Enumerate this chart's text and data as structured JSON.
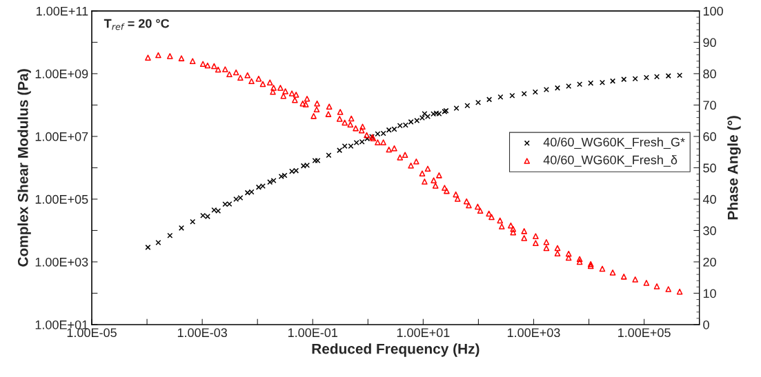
{
  "chart_data": {
    "type": "scatter",
    "xlabel": "Reduced Frequency (Hz)",
    "ylabel": "Complex Shear Modulus (Pa)",
    "y2label": "Phase Angle (°)",
    "annotations": [
      "T$_{ref}$ = 20 °C"
    ],
    "log": "xy",
    "grid": false,
    "legend": "right",
    "xlim": [
      1e-05,
      1000000.0
    ],
    "xticks": [
      {
        "value": 1e-05,
        "label": "1.00E-05"
      },
      {
        "value": 0.0001,
        "label": null
      },
      {
        "value": 0.001,
        "label": "1.00E-03"
      },
      {
        "value": 0.01,
        "label": null
      },
      {
        "value": 0.1,
        "label": "1.00E-01"
      },
      {
        "value": 1,
        "label": null
      },
      {
        "value": 10,
        "label": "1.00E+01"
      },
      {
        "value": 100,
        "label": null
      },
      {
        "value": 1000,
        "label": "1.00E+03"
      },
      {
        "value": 10000.0,
        "label": null
      },
      {
        "value": 100000.0,
        "label": "1.00E+05"
      },
      {
        "value": 1000000.0,
        "label": null
      }
    ],
    "ylim": [
      10,
      100000000000.0
    ],
    "yticks": [
      {
        "value": 10,
        "label": "1.00E+01"
      },
      {
        "value": 100,
        "label": null
      },
      {
        "value": 1000,
        "label": "1.00E+03"
      },
      {
        "value": 10000.0,
        "label": null
      },
      {
        "value": 100000.0,
        "label": "1.00E+05"
      },
      {
        "value": 1000000.0,
        "label": null
      },
      {
        "value": 10000000.0,
        "label": "1.00E+07"
      },
      {
        "value": 100000000.0,
        "label": null
      },
      {
        "value": 1000000000.0,
        "label": "1.00E+09"
      },
      {
        "value": 10000000000.0,
        "label": null
      },
      {
        "value": 100000000000.0,
        "label": "1.00E+11"
      }
    ],
    "y2lim": [
      0,
      100
    ],
    "y2ticks": [
      0,
      10,
      20,
      30,
      40,
      50,
      60,
      70,
      80,
      90,
      100
    ],
    "series": [
      {
        "name": "40/60_WG60K_Fresh_G*",
        "color": "#000000",
        "marker": "cross",
        "x": [
          0.000104,
          0.00016,
          0.00026,
          0.00042,
          0.00067,
          0.00103,
          0.00125,
          0.00164,
          0.00194,
          0.0026,
          0.0031,
          0.0041,
          0.0049,
          0.0066,
          0.0078,
          0.0105,
          0.0125,
          0.0168,
          0.0196,
          0.027,
          0.031,
          0.042,
          0.05,
          0.068,
          0.079,
          0.11,
          0.123,
          0.195,
          0.306,
          0.38,
          0.49,
          0.62,
          0.78,
          0.97,
          1.18,
          1.5,
          1.9,
          2.4,
          3.0,
          3.8,
          4.8,
          6.0,
          7.7,
          9.6,
          10.6,
          12.1,
          15.3,
          17.3,
          19.4,
          24.4,
          25.9,
          40,
          63,
          99,
          157,
          251,
          409,
          673,
          1070,
          1700,
          2700,
          4300,
          6800,
          10800,
          17500,
          27000,
          43000,
          69000,
          110000,
          170000,
          275000,
          440000
        ],
        "values": [
          2900.0,
          4100.0,
          6900.0,
          12000.0,
          19000.0,
          30000.0,
          28000.0,
          45000.0,
          42000.0,
          69000.0,
          70000.0,
          100000.0,
          110000.0,
          160000.0,
          170000.0,
          240000.0,
          260000.0,
          350000.0,
          390000.0,
          530000.0,
          570000.0,
          770000.0,
          810000.0,
          1150000.0,
          1200000.0,
          1700000.0,
          1700000.0,
          2500000.0,
          3600000.0,
          4900000.0,
          4900000.0,
          6300000.0,
          6700000.0,
          8500000.0,
          9800000.0,
          12000000.0,
          12500000.0,
          16000000.0,
          17000000.0,
          22000000.0,
          23000000.0,
          29000000.0,
          32000000.0,
          39000000.0,
          53000000.0,
          43000000.0,
          52000000.0,
          55000000.0,
          53000000.0,
          62000000.0,
          66000000.0,
          79000000.0,
          96000000.0,
          120000000.0,
          150000000.0,
          180000000.0,
          200000000.0,
          230000000.0,
          260000000.0,
          310000000.0,
          350000000.0,
          400000000.0,
          460000000.0,
          500000000.0,
          520000000.0,
          580000000.0,
          660000000.0,
          690000000.0,
          750000000.0,
          800000000.0,
          850000000.0,
          890000000.0
        ]
      },
      {
        "name": "40/60_WG60K_Fresh_δ",
        "color": "#ff0000",
        "marker": "triangle",
        "axis": "y2",
        "x": [
          0.000104,
          0.00016,
          0.00026,
          0.00042,
          0.00067,
          0.00103,
          0.00125,
          0.00164,
          0.00194,
          0.0026,
          0.0031,
          0.0041,
          0.0049,
          0.0066,
          0.0078,
          0.0105,
          0.0125,
          0.0168,
          0.0196,
          0.019,
          0.026,
          0.032,
          0.0295,
          0.042,
          0.05,
          0.0475,
          0.066,
          0.079,
          0.075,
          0.104,
          0.118,
          0.12,
          0.199,
          0.192,
          0.315,
          0.307,
          0.38,
          0.5,
          0.48,
          0.6,
          0.8,
          0.77,
          0.95,
          1.2,
          1.24,
          1.5,
          1.9,
          2.4,
          3.0,
          3.8,
          4.7,
          6.0,
          7.5,
          9.6,
          12.1,
          10.6,
          15.5,
          19.4,
          16.7,
          24.4,
          26.6,
          39,
          42,
          61,
          67,
          97,
          108,
          155,
          173,
          246,
          265,
          386,
          425,
          425,
          673,
          673,
          1087,
          1087,
          1700,
          1700,
          2700,
          2700,
          4300,
          4300,
          6800,
          6800,
          10800,
          10800,
          17500,
          27000,
          43000,
          69000,
          110000,
          170000,
          275000,
          440000
        ],
        "values": [
          85.1,
          85.9,
          85.6,
          84.9,
          84.0,
          83.1,
          82.6,
          82.4,
          81.3,
          81.4,
          79.8,
          80.4,
          78.7,
          79.5,
          77.6,
          78.4,
          76.7,
          77.2,
          75.5,
          74.2,
          75.5,
          74.4,
          72.9,
          73.7,
          73.3,
          71.6,
          70.5,
          72.0,
          70.2,
          66.5,
          68.6,
          70.5,
          69.5,
          67.1,
          67.8,
          65.6,
          64.4,
          65.7,
          63.8,
          62.6,
          63.1,
          61.9,
          60.4,
          59.8,
          59.4,
          58.1,
          58.1,
          55.8,
          56.2,
          53.3,
          54.1,
          50.7,
          52.0,
          48.2,
          49.7,
          45.6,
          46.0,
          47.6,
          44.3,
          43.6,
          42.6,
          41.5,
          40.1,
          39.3,
          38.0,
          37.6,
          36.3,
          35.4,
          34.3,
          33.2,
          31.3,
          31.6,
          30.5,
          29.4,
          29.8,
          27.6,
          28.2,
          26.0,
          26.3,
          24.4,
          24.4,
          22.7,
          22.6,
          21.3,
          20.9,
          20.0,
          19.3,
          18.7,
          17.8,
          16.6,
          15.3,
          14.4,
          13.3,
          12.2,
          11.3,
          10.5
        ]
      }
    ]
  }
}
